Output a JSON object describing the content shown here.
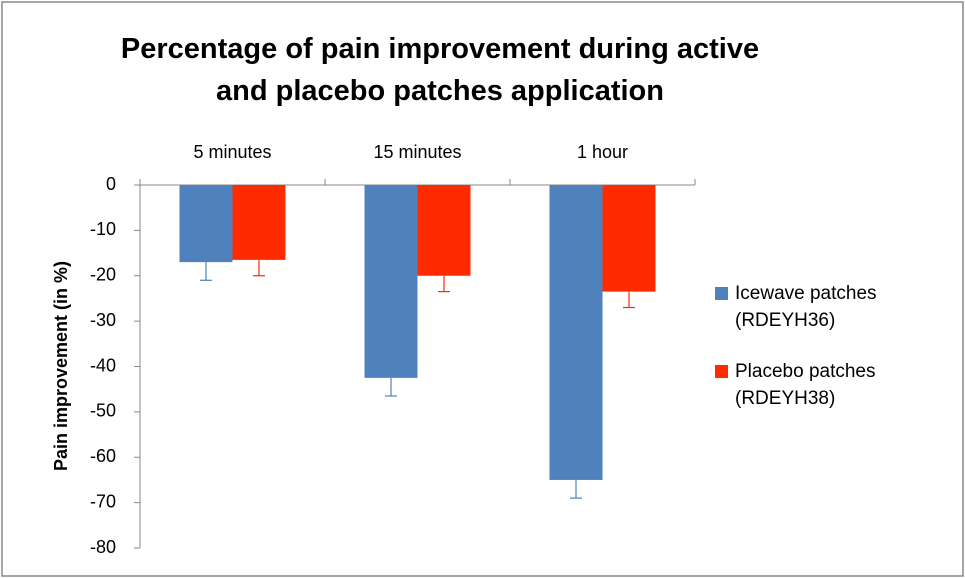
{
  "chart_data": {
    "type": "bar",
    "title": "Percentage of pain improvement during active and placebo patches application",
    "y_label": "Pain improvement (in %)",
    "categories": [
      "5 minutes",
      "15 minutes",
      "1 hour"
    ],
    "series": [
      {
        "name": "Icewave patches (RDEYH36)",
        "color": "#4f81bd",
        "values": [
          -17,
          -42.5,
          -65
        ],
        "errors": [
          4,
          4,
          4
        ]
      },
      {
        "name": "Placebo patches (RDEYH38)",
        "color": "#ff2a00",
        "values": [
          -16.5,
          -20,
          -23.5
        ],
        "errors": [
          3.5,
          3.5,
          3.5
        ]
      }
    ],
    "ylim": [
      -80,
      0
    ],
    "yticks": [
      0,
      -10,
      -20,
      -30,
      -40,
      -50,
      -60,
      -70,
      -80
    ],
    "grid": false,
    "legend": "right"
  }
}
